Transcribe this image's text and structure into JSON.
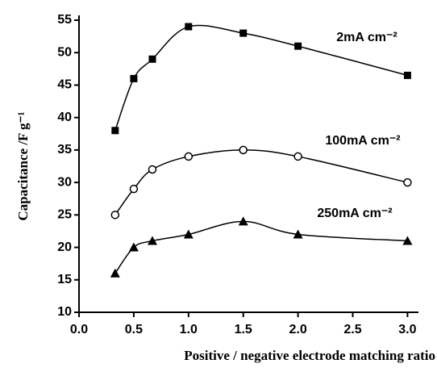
{
  "chart_data": {
    "type": "line",
    "x_label": "Positive / negative electrode matching ratio",
    "y_label": "Capacitance /F g⁻¹",
    "x": [
      0.33,
      0.5,
      0.67,
      1.0,
      1.5,
      2.0,
      3.0
    ],
    "series": [
      {
        "name": "2mA cm⁻²",
        "color": "#000000",
        "marker": "square",
        "values": [
          38,
          46,
          49,
          54,
          53,
          51,
          46.5
        ]
      },
      {
        "name": "100mA cm⁻²",
        "color": "#000000",
        "marker": "circle",
        "values": [
          25,
          29,
          32,
          34,
          35,
          34,
          30
        ]
      },
      {
        "name": "250mA cm⁻²",
        "color": "#000000",
        "marker": "triangle",
        "values": [
          16,
          20,
          21,
          22,
          24,
          22,
          21
        ]
      }
    ],
    "xlim": [
      0,
      3.1
    ],
    "ylim": [
      10,
      55
    ],
    "xticks": [
      {
        "value": 0,
        "label": "0.0"
      },
      0.5,
      {
        "value": 1,
        "label": "1.0"
      },
      1.5,
      {
        "value": 2,
        "label": "2.0"
      },
      2.5,
      {
        "value": 3,
        "label": "3.0"
      }
    ],
    "yticks": [
      10,
      15,
      20,
      25,
      30,
      35,
      40,
      45,
      50,
      55
    ],
    "grid": false
  }
}
